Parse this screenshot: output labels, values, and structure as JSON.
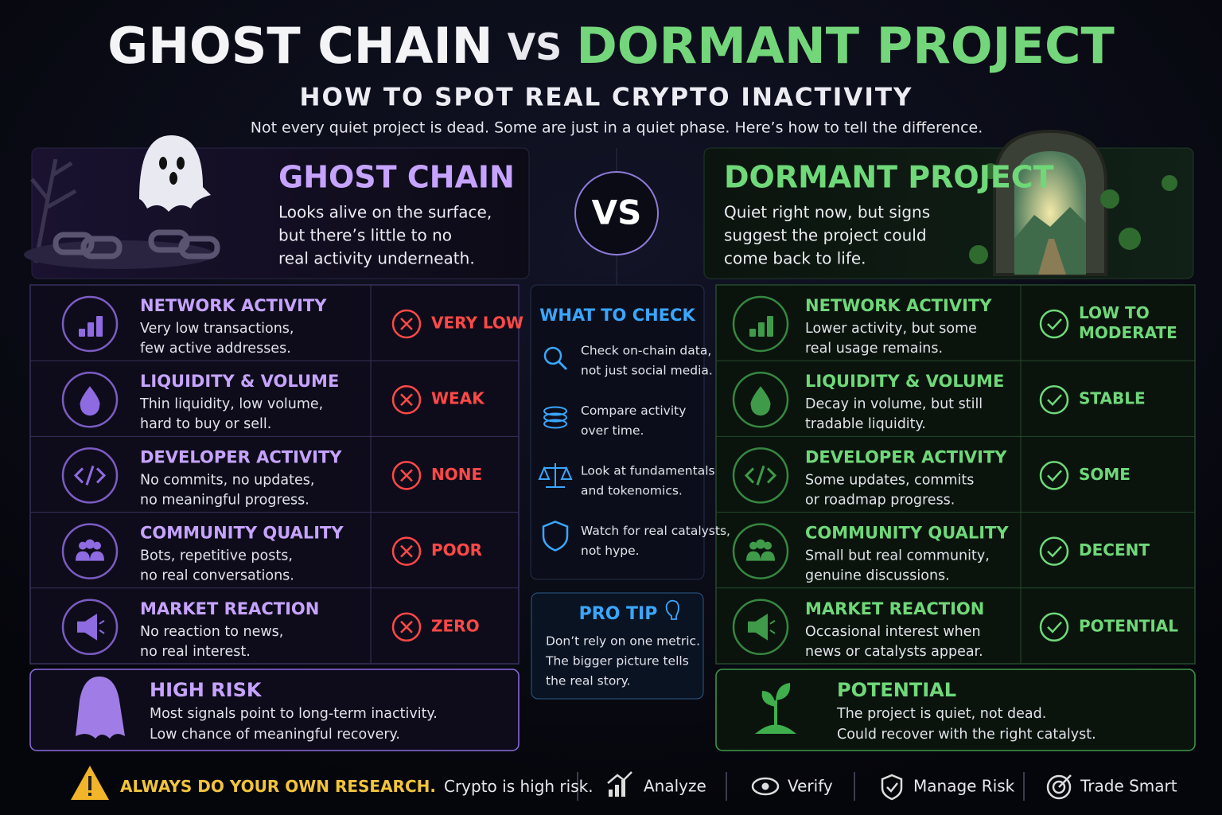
{
  "header": {
    "title_left": "GHOST CHAIN",
    "title_vs": "VS",
    "title_right": "DORMANT PROJECT",
    "subtitle": "HOW TO SPOT REAL CRYPTO INACTIVITY",
    "intro": "Not every quiet project is dead. Some are just in a quiet phase. Here’s how to tell the difference."
  },
  "ghost": {
    "title": "GHOST CHAIN",
    "description": [
      "Looks alive on the surface,",
      "but there’s little to no",
      "real activity underneath."
    ],
    "rows": [
      {
        "title": "NETWORK ACTIVITY",
        "lines": [
          "Very low transactions,",
          "few active addresses."
        ],
        "rating": [
          "VERY LOW"
        ]
      },
      {
        "title": "LIQUIDITY & VOLUME",
        "lines": [
          "Thin liquidity, low volume,",
          "hard to buy or sell."
        ],
        "rating": [
          "WEAK"
        ]
      },
      {
        "title": "DEVELOPER ACTIVITY",
        "lines": [
          "No commits, no updates,",
          "no meaningful progress."
        ],
        "rating": [
          "NONE"
        ]
      },
      {
        "title": "COMMUNITY QUALITY",
        "lines": [
          "Bots, repetitive posts,",
          "no real conversations."
        ],
        "rating": [
          "POOR"
        ]
      },
      {
        "title": "MARKET REACTION",
        "lines": [
          "No reaction to news,",
          "no real interest."
        ],
        "rating": [
          "ZERO"
        ]
      }
    ],
    "verdict": {
      "title": "HIGH RISK",
      "lines": [
        "Most signals point to long-term inactivity.",
        "Low chance of meaningful recovery."
      ]
    }
  },
  "vs_badge": "VS",
  "check": {
    "title": "WHAT TO CHECK",
    "items": [
      {
        "lines": [
          "Check on-chain data,",
          "not just social media."
        ]
      },
      {
        "lines": [
          "Compare activity",
          "over time."
        ]
      },
      {
        "lines": [
          "Look at fundamentals",
          "and tokenomics."
        ]
      },
      {
        "lines": [
          "Watch for real catalysts,",
          "not hype."
        ]
      }
    ]
  },
  "pro_tip": {
    "title": "PRO TIP",
    "lines": [
      "Don’t rely on one metric.",
      "The bigger picture tells",
      "the real story."
    ]
  },
  "dormant": {
    "title": "DORMANT PROJECT",
    "description": [
      "Quiet right now, but signs",
      "suggest the project could",
      "come back to life."
    ],
    "rows": [
      {
        "title": "NETWORK ACTIVITY",
        "lines": [
          "Lower activity, but some",
          "real usage remains."
        ],
        "rating": [
          "LOW TO",
          "MODERATE"
        ]
      },
      {
        "title": "LIQUIDITY & VOLUME",
        "lines": [
          "Decay in volume, but still",
          "tradable liquidity."
        ],
        "rating": [
          "STABLE"
        ]
      },
      {
        "title": "DEVELOPER ACTIVITY",
        "lines": [
          "Some updates, commits",
          "or roadmap progress."
        ],
        "rating": [
          "SOME"
        ]
      },
      {
        "title": "COMMUNITY QUALITY",
        "lines": [
          "Small but real community,",
          "genuine discussions."
        ],
        "rating": [
          "DECENT"
        ]
      },
      {
        "title": "MARKET REACTION",
        "lines": [
          "Occasional interest when",
          "news or catalysts appear."
        ],
        "rating": [
          "POTENTIAL"
        ]
      }
    ],
    "verdict": {
      "title": "POTENTIAL",
      "lines": [
        "The project is quiet, not dead.",
        "Could recover with the right catalyst."
      ]
    }
  },
  "footer": {
    "warning_bold": "ALWAYS DO YOUR OWN RESEARCH.",
    "warning": "Crypto is high risk.",
    "actions": [
      "Analyze",
      "Verify",
      "Manage Risk",
      "Trade Smart"
    ]
  }
}
